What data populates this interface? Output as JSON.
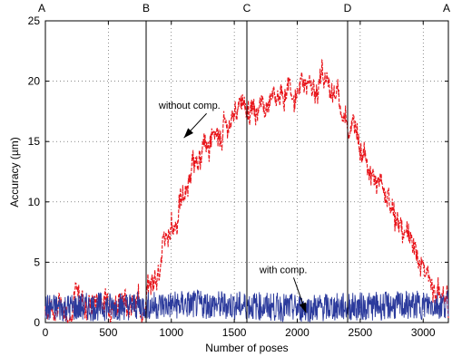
{
  "chart_data": {
    "type": "line",
    "xlabel": "Number of poses",
    "ylabel": "Accuracy (µm)",
    "xlim": [
      0,
      3200
    ],
    "ylim": [
      0,
      25
    ],
    "xticks": [
      0,
      500,
      1000,
      1500,
      2000,
      2500,
      3000
    ],
    "yticks": [
      0,
      5,
      10,
      15,
      20,
      25
    ],
    "grid": true,
    "markers": [
      {
        "label": "A",
        "x": 0,
        "line": false
      },
      {
        "label": "B",
        "x": 800,
        "line": true
      },
      {
        "label": "C",
        "x": 1600,
        "line": true
      },
      {
        "label": "D",
        "x": 2400,
        "line": true
      },
      {
        "label": "A",
        "x": 3200,
        "line": false
      }
    ],
    "series": [
      {
        "name": "without comp.",
        "color": "#e8141a",
        "dash": "dashed",
        "x": [
          0,
          100,
          200,
          300,
          400,
          500,
          600,
          700,
          800,
          900,
          1000,
          1100,
          1200,
          1300,
          1400,
          1500,
          1600,
          1700,
          1800,
          1900,
          2000,
          2100,
          2200,
          2300,
          2400,
          2500,
          2600,
          2700,
          2800,
          2900,
          3000,
          3100,
          3200
        ],
        "y": [
          1.3,
          1.5,
          1.7,
          1.9,
          2.0,
          2.0,
          1.9,
          1.8,
          1.8,
          5.0,
          8.0,
          10.5,
          13.0,
          15.0,
          16.5,
          17.5,
          18.0,
          18.5,
          19.0,
          19.5,
          20.0,
          19.8,
          19.5,
          19.0,
          17.0,
          15.0,
          13.0,
          10.5,
          8.5,
          6.0,
          4.0,
          2.5,
          1.5
        ],
        "noise": 1.2
      },
      {
        "name": "with comp.",
        "color": "#2b3a9c",
        "dash": "solid",
        "x": [
          0,
          400,
          800,
          1200,
          1600,
          2000,
          2400,
          2800,
          3200
        ],
        "y": [
          1.2,
          1.3,
          1.4,
          1.5,
          1.4,
          1.2,
          1.3,
          1.4,
          1.5
        ],
        "noise": 1.5
      }
    ],
    "annotations": [
      {
        "text": "without comp.",
        "tx": 900,
        "ty": 17.7,
        "ax": 1100,
        "ay": 15.3
      },
      {
        "text": "with comp.",
        "tx": 1700,
        "ty": 4.1,
        "ax": 2070,
        "ay": 0.8
      }
    ]
  }
}
